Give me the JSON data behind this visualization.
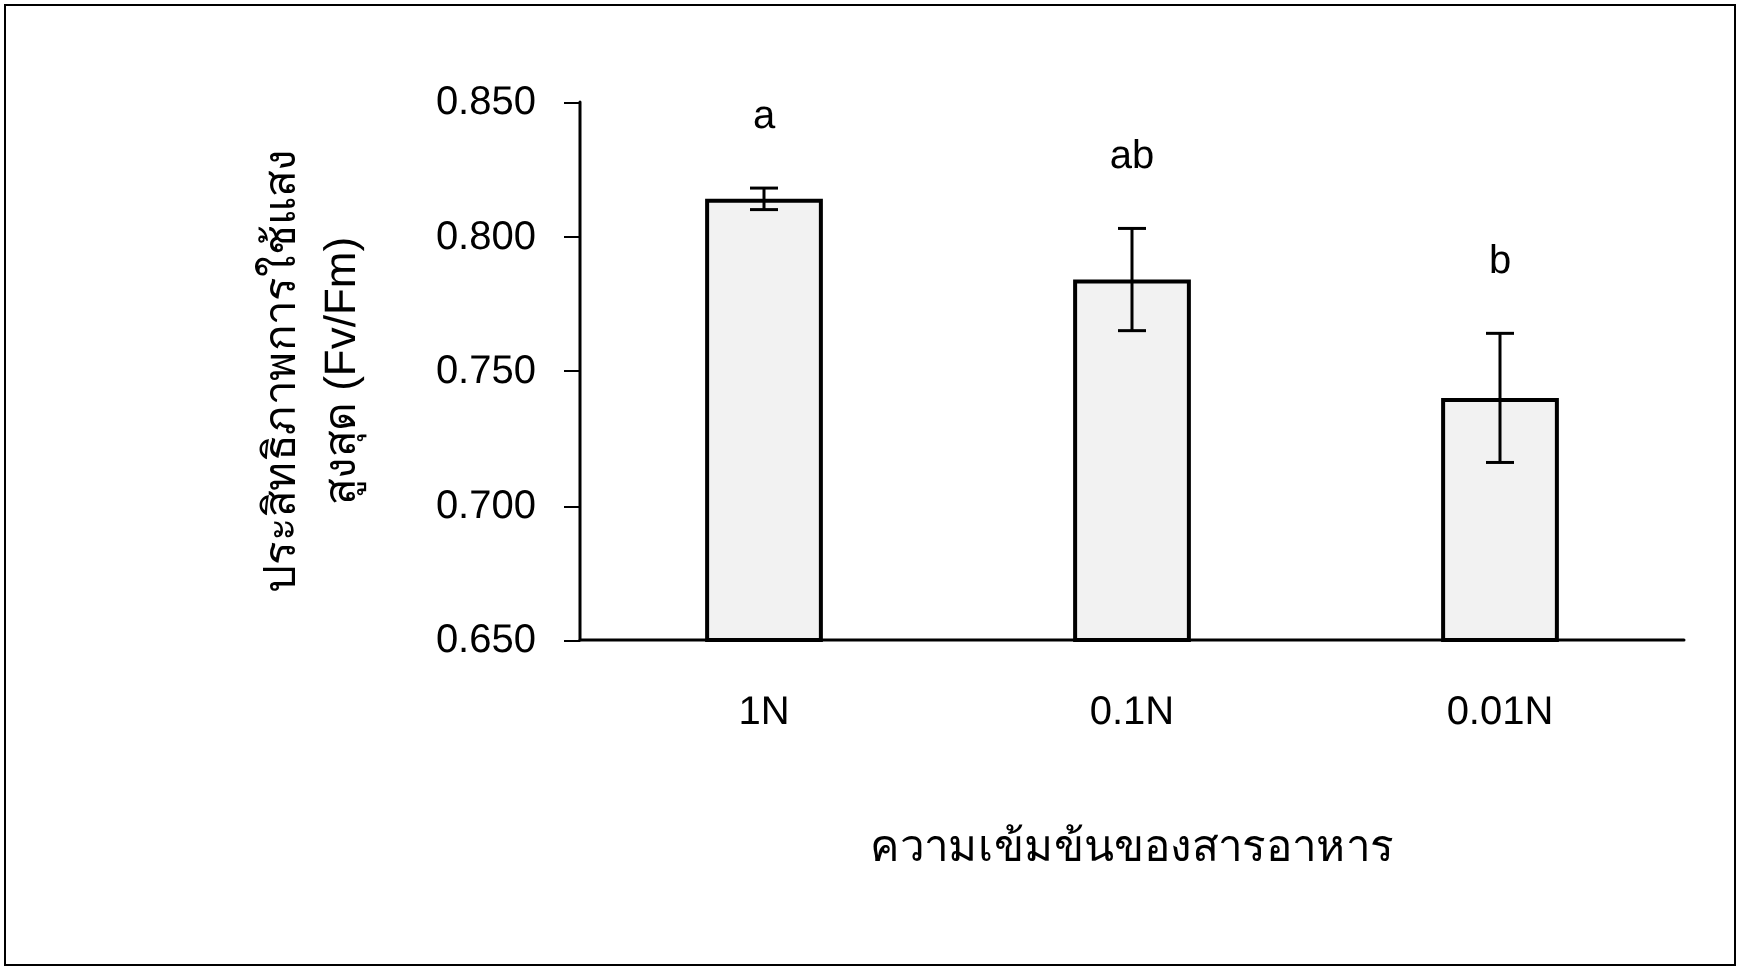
{
  "chart_data": {
    "type": "bar",
    "xlabel": "ความเข้มข้นของสารอาหาร",
    "ylabel": "ประสิทธิภาพการใช้แสง\nสูงสุด (Fv/Fm)",
    "categories": [
      "1N",
      "0.1N",
      "0.01N"
    ],
    "values": [
      0.814,
      0.784,
      0.74
    ],
    "errors": [
      0.004,
      0.019,
      0.024
    ],
    "color": "#f2f2f2",
    "ylim": [
      0.65,
      0.85
    ],
    "yticks": [
      {
        "value": 0.65,
        "label": "0.650"
      },
      {
        "value": 0.7,
        "label": "0.700"
      },
      {
        "value": 0.75,
        "label": "0.750"
      },
      {
        "value": 0.8,
        "label": "0.800"
      },
      {
        "value": 0.85,
        "label": "0.850"
      }
    ],
    "grid": false,
    "annotations": [
      "a",
      "ab",
      "b"
    ]
  }
}
